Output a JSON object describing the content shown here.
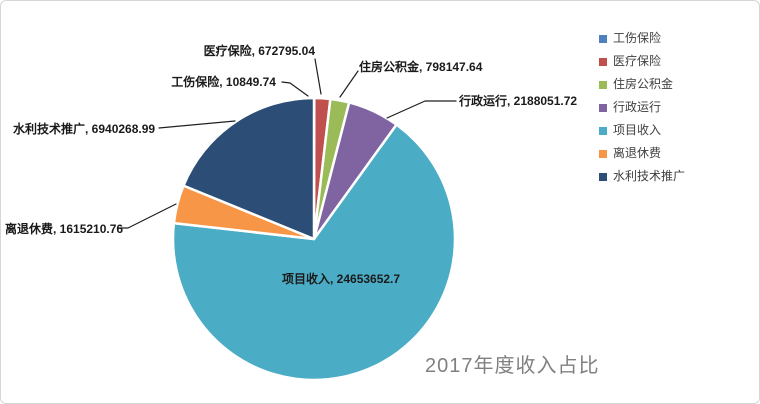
{
  "window": {
    "background": "#ffffff",
    "border_color": "#d6d6d6"
  },
  "chart_data": {
    "type": "pie",
    "title": "2017年度收入占比",
    "title_color": "#808080",
    "legend_position": "right",
    "direction": "clockwise",
    "start_angle_deg": 0,
    "grid": false,
    "slices": [
      {
        "name": "工伤保险",
        "value": 10849.74,
        "color": "#4F81BD",
        "label": "工伤保险, 10849.74"
      },
      {
        "name": "医疗保险",
        "value": 672795.04,
        "color": "#C0504D",
        "label": "医疗保险, 672795.04"
      },
      {
        "name": "住房公积金",
        "value": 798147.64,
        "color": "#9BBB59",
        "label": "住房公积金, 798147.64"
      },
      {
        "name": "行政运行",
        "value": 2188051.72,
        "color": "#8064A2",
        "label": "行政运行, 2188051.72"
      },
      {
        "name": "项目收入",
        "value": 24653652.7,
        "color": "#4BACC6",
        "label": "项目收入, 24653652.7"
      },
      {
        "name": "离退休费",
        "value": 1615210.76,
        "color": "#F79646",
        "label": "离退休费, 1615210.76"
      },
      {
        "name": "水利技术推广",
        "value": 6940268.99,
        "color": "#2C4D75",
        "label": "水利技术推广, 6940268.99"
      }
    ]
  }
}
